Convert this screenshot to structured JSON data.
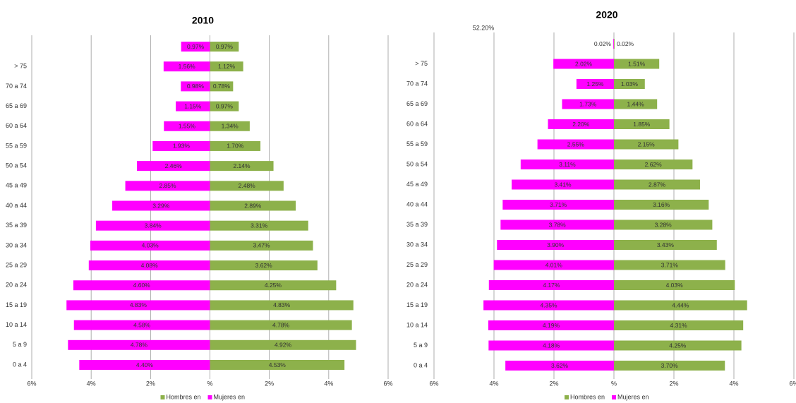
{
  "chart_data": [
    {
      "type": "pyramid",
      "title": "2010",
      "categories": [
        "0 a 4",
        "5 a 9",
        "10 a 14",
        "15 a 19",
        "20 a 24",
        "25 a 29",
        "30 a 34",
        "35 a 39",
        "40 a 44",
        "45 a 49",
        "50 a 54",
        "55 a 59",
        "60 a 64",
        "65 a 69",
        "70 a 74",
        "> 75",
        null
      ],
      "series": [
        {
          "name": "Hombres en",
          "color": "#8db14b",
          "values": [
            4.53,
            4.92,
            4.78,
            4.83,
            4.25,
            3.62,
            3.47,
            3.31,
            2.89,
            2.48,
            2.14,
            1.7,
            1.34,
            0.97,
            0.78,
            1.12,
            0.97
          ],
          "value_labels": [
            "4.53%",
            "4.92%",
            "4.78%",
            "4.83%",
            "4.25%",
            "3.62%",
            "3.47%",
            "3.31%",
            "2.89%",
            "2.48%",
            "2.14%",
            "1.70%",
            "1.34%",
            "0.97%",
            "0.78%",
            "1.12%",
            "0.97%"
          ]
        },
        {
          "name": "Mujeres en",
          "color": "#ff00ff",
          "values": [
            4.4,
            4.78,
            4.58,
            4.83,
            4.6,
            4.08,
            4.03,
            3.84,
            3.29,
            2.85,
            2.46,
            1.93,
            1.55,
            1.15,
            0.98,
            1.56,
            0.97
          ],
          "value_labels": [
            "4.40%",
            "4.78%",
            "4.58%",
            "4.83%",
            "4.60%",
            "4.08%",
            "4.03%",
            "3.84%",
            "3.29%",
            "2.85%",
            "2.46%",
            "1.93%",
            "1.55%",
            "1.15%",
            "0.98%",
            "1.56%",
            "0.97%"
          ]
        }
      ],
      "xlim": [
        -6,
        6
      ],
      "xticks": [
        {
          "value": -6,
          "label": "6%"
        },
        {
          "value": -4,
          "label": "4%"
        },
        {
          "value": -2,
          "label": "2%"
        },
        {
          "value": 0,
          "label": "%"
        },
        {
          "value": 2,
          "label": "2%"
        },
        {
          "value": 4,
          "label": "4%"
        },
        {
          "value": 6,
          "label": "6%"
        }
      ],
      "grid": true
    },
    {
      "type": "pyramid",
      "title": "2020",
      "annotation": "52.20%",
      "categories": [
        "0 a 4",
        "5 a 9",
        "10 a 14",
        "15 a 19",
        "20 a 24",
        "25 a 29",
        "30 a 34",
        "35 a 39",
        "40 a 44",
        "45 a 49",
        "50 a 54",
        "55 a 59",
        "60 a 64",
        "65 a 69",
        "70 a 74",
        "> 75",
        null
      ],
      "series": [
        {
          "name": "Hombres en",
          "color": "#8db14b",
          "values": [
            3.7,
            4.25,
            4.31,
            4.44,
            4.03,
            3.71,
            3.43,
            3.28,
            3.16,
            2.87,
            2.62,
            2.15,
            1.85,
            1.44,
            1.03,
            1.51,
            0.02
          ],
          "value_labels": [
            "3.70%",
            "4.25%",
            "4.31%",
            "4.44%",
            "4.03%",
            "3.71%",
            "3.43%",
            "3.28%",
            "3.16%",
            "2.87%",
            "2.62%",
            "2.15%",
            "1.85%",
            "1.44%",
            "1.03%",
            "1.51%",
            "0.02%"
          ]
        },
        {
          "name": "Mujeres en",
          "color": "#ff00ff",
          "values": [
            3.62,
            4.18,
            4.19,
            4.35,
            4.17,
            4.01,
            3.9,
            3.78,
            3.71,
            3.41,
            3.11,
            2.55,
            2.2,
            1.73,
            1.25,
            2.02,
            0.02
          ],
          "value_labels": [
            "3.62%",
            "4.18%",
            "4.19%",
            "4.35%",
            "4.17%",
            "4.01%",
            "3.90%",
            "3.78%",
            "3.71%",
            "3.41%",
            "3.11%",
            "2.55%",
            "2.20%",
            "1.73%",
            "1.25%",
            "2.02%",
            "0.02%"
          ]
        }
      ],
      "xlim": [
        -6,
        6
      ],
      "xticks": [
        {
          "value": -6,
          "label": "6%"
        },
        {
          "value": -4,
          "label": "4%"
        },
        {
          "value": -2,
          "label": "2%"
        },
        {
          "value": 0,
          "label": "%"
        },
        {
          "value": 2,
          "label": "2%"
        },
        {
          "value": 4,
          "label": "4%"
        },
        {
          "value": 6,
          "label": "6%"
        }
      ],
      "grid": true
    }
  ]
}
